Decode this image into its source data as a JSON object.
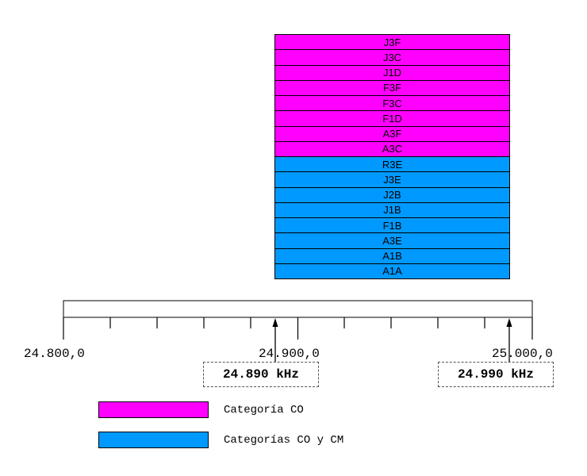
{
  "colors": {
    "co": "#ff00ff",
    "co_cm": "#0099ff"
  },
  "bands": [
    {
      "label": "J3F",
      "category": "co"
    },
    {
      "label": "J3C",
      "category": "co"
    },
    {
      "label": "J1D",
      "category": "co"
    },
    {
      "label": "F3F",
      "category": "co"
    },
    {
      "label": "F3C",
      "category": "co"
    },
    {
      "label": "F1D",
      "category": "co"
    },
    {
      "label": "A3F",
      "category": "co"
    },
    {
      "label": "A3C",
      "category": "co"
    },
    {
      "label": "R3E",
      "category": "co_cm"
    },
    {
      "label": "J3E",
      "category": "co_cm"
    },
    {
      "label": "J2B",
      "category": "co_cm"
    },
    {
      "label": "J1B",
      "category": "co_cm"
    },
    {
      "label": "F1B",
      "category": "co_cm"
    },
    {
      "label": "A3E",
      "category": "co_cm"
    },
    {
      "label": "A1B",
      "category": "co_cm"
    },
    {
      "label": "A1A",
      "category": "co_cm"
    }
  ],
  "scale": {
    "labels": [
      "24.800,0",
      "24.900,0",
      "25.000,0"
    ]
  },
  "markers": [
    {
      "label": "24.890 kHz"
    },
    {
      "label": "24.990 kHz"
    }
  ],
  "legend": [
    {
      "label": "Categoría CO",
      "category": "co"
    },
    {
      "label": "Categorías CO y CM",
      "category": "co_cm"
    }
  ]
}
